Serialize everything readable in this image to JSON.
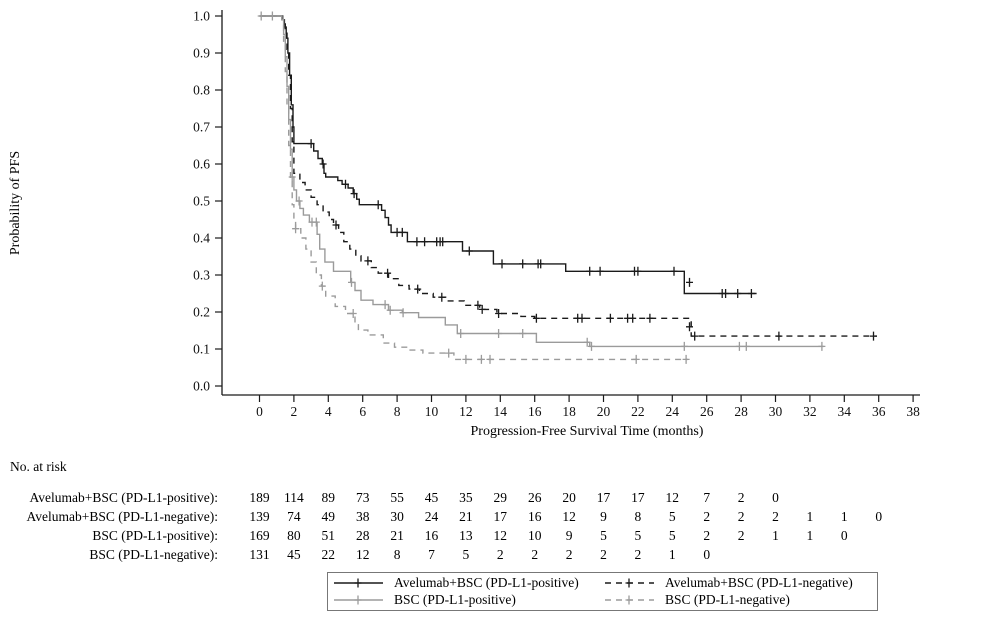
{
  "figure": {
    "background": "#ffffff",
    "axis_color": "#1a1a1a"
  },
  "chart_data": {
    "type": "line",
    "subtype": "kaplan-meier-step",
    "title": "",
    "xlabel": "Progression-Free Survival Time (months)",
    "ylabel": "Probability of PFS",
    "xlim": [
      0,
      38
    ],
    "ylim": [
      0.0,
      1.0
    ],
    "xticks": [
      0,
      2,
      4,
      6,
      8,
      10,
      12,
      14,
      16,
      18,
      20,
      22,
      24,
      26,
      28,
      30,
      32,
      34,
      36,
      38
    ],
    "yticks": [
      0.0,
      0.1,
      0.2,
      0.3,
      0.4,
      0.5,
      0.6,
      0.7,
      0.8,
      0.9,
      1.0
    ],
    "grid": false,
    "legend_position": "bottom-boxed",
    "series": [
      {
        "name": "Avelumab+BSC (PD-L1-positive)",
        "color": "#1a1a1a",
        "dash": "solid",
        "end": 28.9,
        "steps": [
          [
            0,
            1.0
          ],
          [
            1.3,
            0.99
          ],
          [
            1.45,
            0.97
          ],
          [
            1.55,
            0.94
          ],
          [
            1.65,
            0.9
          ],
          [
            1.75,
            0.84
          ],
          [
            1.85,
            0.76
          ],
          [
            1.95,
            0.7
          ],
          [
            2.0,
            0.655
          ],
          [
            3.15,
            0.635
          ],
          [
            3.4,
            0.615
          ],
          [
            3.65,
            0.6
          ],
          [
            3.75,
            0.575
          ],
          [
            3.85,
            0.565
          ],
          [
            4.55,
            0.555
          ],
          [
            4.8,
            0.545
          ],
          [
            5.15,
            0.535
          ],
          [
            5.45,
            0.52
          ],
          [
            5.65,
            0.505
          ],
          [
            5.8,
            0.49
          ],
          [
            7.1,
            0.475
          ],
          [
            7.3,
            0.455
          ],
          [
            7.5,
            0.435
          ],
          [
            7.65,
            0.415
          ],
          [
            8.6,
            0.39
          ],
          [
            11.8,
            0.365
          ],
          [
            13.6,
            0.33
          ],
          [
            17.8,
            0.31
          ],
          [
            24.7,
            0.25
          ]
        ],
        "censors": [
          [
            3.0,
            0.655
          ],
          [
            3.7,
            0.6
          ],
          [
            5.0,
            0.545
          ],
          [
            5.5,
            0.52
          ],
          [
            6.9,
            0.49
          ],
          [
            8.0,
            0.415
          ],
          [
            8.3,
            0.415
          ],
          [
            9.15,
            0.39
          ],
          [
            9.6,
            0.39
          ],
          [
            10.3,
            0.39
          ],
          [
            10.5,
            0.39
          ],
          [
            10.65,
            0.39
          ],
          [
            12.2,
            0.365
          ],
          [
            14.1,
            0.33
          ],
          [
            15.3,
            0.33
          ],
          [
            16.2,
            0.33
          ],
          [
            16.35,
            0.33
          ],
          [
            19.2,
            0.31
          ],
          [
            19.8,
            0.31
          ],
          [
            21.8,
            0.31
          ],
          [
            22.0,
            0.31
          ],
          [
            24.1,
            0.31
          ],
          [
            25.0,
            0.28
          ],
          [
            26.9,
            0.25
          ],
          [
            27.1,
            0.25
          ],
          [
            27.8,
            0.25
          ],
          [
            28.6,
            0.25
          ]
        ]
      },
      {
        "name": "Avelumab+BSC (PD-L1-negative)",
        "color": "#1a1a1a",
        "dash": "dashed",
        "end": 35.9,
        "steps": [
          [
            0,
            1.0
          ],
          [
            1.35,
            0.99
          ],
          [
            1.5,
            0.96
          ],
          [
            1.6,
            0.91
          ],
          [
            1.7,
            0.84
          ],
          [
            1.8,
            0.75
          ],
          [
            1.9,
            0.66
          ],
          [
            2.0,
            0.575
          ],
          [
            2.35,
            0.55
          ],
          [
            2.65,
            0.53
          ],
          [
            3.0,
            0.51
          ],
          [
            3.35,
            0.49
          ],
          [
            3.7,
            0.47
          ],
          [
            4.05,
            0.45
          ],
          [
            4.3,
            0.435
          ],
          [
            4.6,
            0.415
          ],
          [
            4.9,
            0.39
          ],
          [
            5.25,
            0.37
          ],
          [
            5.6,
            0.352
          ],
          [
            5.9,
            0.338
          ],
          [
            6.5,
            0.32
          ],
          [
            6.9,
            0.305
          ],
          [
            7.5,
            0.29
          ],
          [
            8.1,
            0.272
          ],
          [
            8.7,
            0.262
          ],
          [
            9.3,
            0.25
          ],
          [
            10.1,
            0.24
          ],
          [
            10.9,
            0.23
          ],
          [
            11.9,
            0.218
          ],
          [
            12.8,
            0.207
          ],
          [
            13.8,
            0.196
          ],
          [
            15.2,
            0.188
          ],
          [
            16.0,
            0.183
          ],
          [
            25.1,
            0.135
          ]
        ],
        "censors": [
          [
            4.45,
            0.435
          ],
          [
            6.3,
            0.338
          ],
          [
            7.45,
            0.305
          ],
          [
            9.2,
            0.262
          ],
          [
            10.6,
            0.24
          ],
          [
            12.7,
            0.218
          ],
          [
            12.95,
            0.207
          ],
          [
            13.9,
            0.196
          ],
          [
            16.1,
            0.183
          ],
          [
            18.5,
            0.183
          ],
          [
            18.75,
            0.183
          ],
          [
            20.4,
            0.183
          ],
          [
            21.4,
            0.183
          ],
          [
            21.7,
            0.183
          ],
          [
            22.7,
            0.183
          ],
          [
            25.0,
            0.16
          ],
          [
            25.3,
            0.135
          ],
          [
            30.2,
            0.135
          ],
          [
            35.7,
            0.135
          ]
        ]
      },
      {
        "name": "BSC (PD-L1-positive)",
        "color": "#9b9b9b",
        "dash": "solid",
        "end": 32.8,
        "steps": [
          [
            0,
            1.0
          ],
          [
            1.3,
            0.99
          ],
          [
            1.4,
            0.95
          ],
          [
            1.5,
            0.89
          ],
          [
            1.6,
            0.81
          ],
          [
            1.7,
            0.72
          ],
          [
            1.8,
            0.64
          ],
          [
            1.9,
            0.565
          ],
          [
            2.0,
            0.53
          ],
          [
            2.15,
            0.5
          ],
          [
            2.35,
            0.48
          ],
          [
            2.55,
            0.462
          ],
          [
            2.9,
            0.443
          ],
          [
            3.35,
            0.41
          ],
          [
            3.5,
            0.37
          ],
          [
            3.8,
            0.335
          ],
          [
            4.3,
            0.31
          ],
          [
            5.3,
            0.28
          ],
          [
            5.55,
            0.258
          ],
          [
            5.9,
            0.232
          ],
          [
            6.6,
            0.22
          ],
          [
            7.5,
            0.205
          ],
          [
            8.3,
            0.198
          ],
          [
            9.25,
            0.185
          ],
          [
            10.8,
            0.165
          ],
          [
            11.5,
            0.142
          ],
          [
            16.1,
            0.118
          ],
          [
            19.2,
            0.107
          ]
        ],
        "censors": [
          [
            0.1,
            1.0
          ],
          [
            1.9,
            0.565
          ],
          [
            2.3,
            0.5
          ],
          [
            3.05,
            0.443
          ],
          [
            3.3,
            0.443
          ],
          [
            5.35,
            0.28
          ],
          [
            7.3,
            0.22
          ],
          [
            7.6,
            0.205
          ],
          [
            8.35,
            0.198
          ],
          [
            11.7,
            0.142
          ],
          [
            13.9,
            0.142
          ],
          [
            15.3,
            0.142
          ],
          [
            19.05,
            0.118
          ],
          [
            19.3,
            0.107
          ],
          [
            24.7,
            0.107
          ],
          [
            27.9,
            0.107
          ],
          [
            28.3,
            0.107
          ],
          [
            32.7,
            0.107
          ]
        ]
      },
      {
        "name": "BSC (PD-L1-negative)",
        "color": "#9b9b9b",
        "dash": "dashed",
        "end": 24.9,
        "steps": [
          [
            0,
            1.0
          ],
          [
            1.3,
            0.99
          ],
          [
            1.4,
            0.93
          ],
          [
            1.5,
            0.85
          ],
          [
            1.6,
            0.75
          ],
          [
            1.7,
            0.65
          ],
          [
            1.8,
            0.56
          ],
          [
            1.9,
            0.49
          ],
          [
            2.0,
            0.445
          ],
          [
            2.1,
            0.425
          ],
          [
            2.4,
            0.4
          ],
          [
            2.7,
            0.37
          ],
          [
            3.0,
            0.335
          ],
          [
            3.3,
            0.3
          ],
          [
            3.6,
            0.27
          ],
          [
            3.85,
            0.243
          ],
          [
            4.4,
            0.215
          ],
          [
            5.0,
            0.196
          ],
          [
            5.55,
            0.17
          ],
          [
            5.75,
            0.151
          ],
          [
            6.3,
            0.138
          ],
          [
            7.2,
            0.116
          ],
          [
            7.85,
            0.105
          ],
          [
            8.6,
            0.097
          ],
          [
            9.5,
            0.089
          ],
          [
            11.3,
            0.072
          ]
        ],
        "censors": [
          [
            0.75,
            1.0
          ],
          [
            2.1,
            0.425
          ],
          [
            3.65,
            0.27
          ],
          [
            5.45,
            0.196
          ],
          [
            11.0,
            0.089
          ],
          [
            12.0,
            0.072
          ],
          [
            12.9,
            0.072
          ],
          [
            13.4,
            0.072
          ],
          [
            21.9,
            0.072
          ],
          [
            24.8,
            0.072
          ]
        ]
      }
    ]
  },
  "risk_table": {
    "heading": "No. at risk",
    "time_interval": 2,
    "rows": [
      {
        "label": "Avelumab+BSC (PD-L1-positive):",
        "values": [
          189,
          114,
          89,
          73,
          55,
          45,
          35,
          29,
          26,
          20,
          17,
          17,
          12,
          7,
          2,
          0
        ]
      },
      {
        "label": "Avelumab+BSC (PD-L1-negative):",
        "values": [
          139,
          74,
          49,
          38,
          30,
          24,
          21,
          17,
          16,
          12,
          9,
          8,
          5,
          2,
          2,
          2,
          1,
          1,
          0
        ]
      },
      {
        "label": "BSC (PD-L1-positive):",
        "values": [
          169,
          80,
          51,
          28,
          21,
          16,
          13,
          12,
          10,
          9,
          5,
          5,
          5,
          2,
          2,
          1,
          1,
          0
        ]
      },
      {
        "label": "BSC (PD-L1-negative):",
        "values": [
          131,
          45,
          22,
          12,
          8,
          7,
          5,
          2,
          2,
          2,
          2,
          2,
          1,
          0
        ]
      }
    ]
  },
  "legend": {
    "entries": [
      {
        "label": "Avelumab+BSC (PD-L1-positive)",
        "color": "#1a1a1a",
        "dash": "solid"
      },
      {
        "label": "Avelumab+BSC (PD-L1-negative)",
        "color": "#1a1a1a",
        "dash": "dashed"
      },
      {
        "label": "BSC (PD-L1-positive)",
        "color": "#9b9b9b",
        "dash": "solid"
      },
      {
        "label": "BSC (PD-L1-negative)",
        "color": "#9b9b9b",
        "dash": "dashed"
      }
    ]
  }
}
